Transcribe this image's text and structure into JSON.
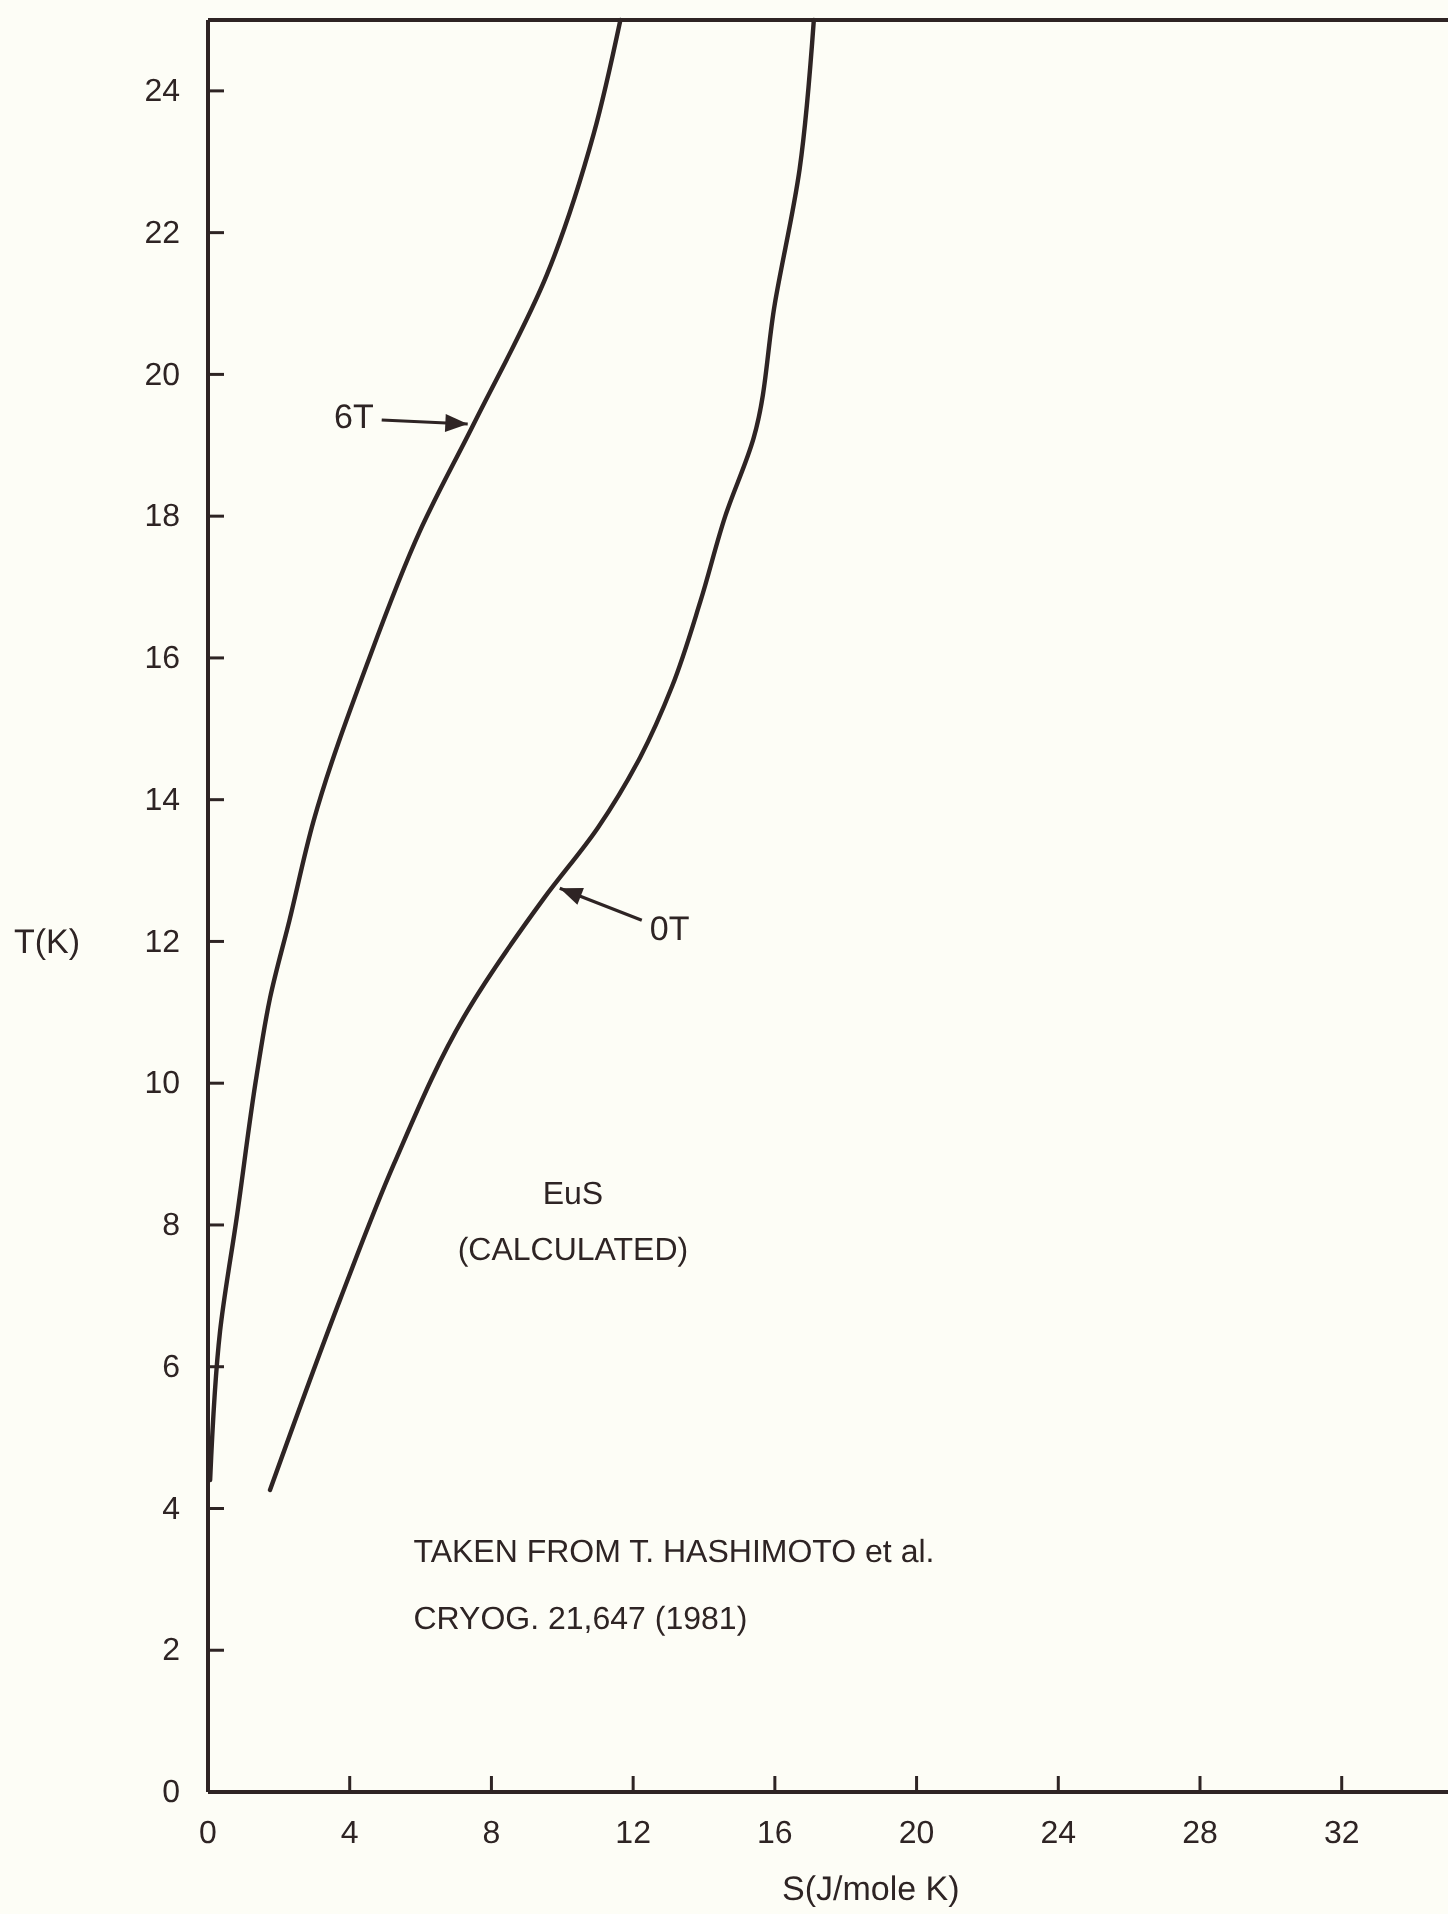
{
  "chart_data": {
    "type": "line",
    "xlabel": "S(J/mole K)",
    "ylabel": "T(K)",
    "xlim": [
      0,
      35
    ],
    "ylim": [
      0,
      25
    ],
    "xticks": [
      0,
      4,
      8,
      12,
      16,
      20,
      24,
      28,
      32
    ],
    "yticks": [
      0,
      2,
      4,
      6,
      8,
      10,
      12,
      14,
      16,
      18,
      20,
      22,
      24
    ],
    "series": [
      {
        "color": "#2e2424",
        "x": [
          0.06,
          0.34,
          0.81,
          1.37,
          1.75,
          2.3,
          2.98,
          4.48,
          5.99,
          7.5,
          9.56,
          10.89,
          11.64
        ],
        "values": [
          4.4,
          6.5,
          8.1,
          10.1,
          11.2,
          12.3,
          13.7,
          15.9,
          17.8,
          19.3,
          21.4,
          23.4,
          25.0
        ]
      },
      {
        "color": "#2e2424",
        "x": [
          1.75,
          3.73,
          5.24,
          7.3,
          9.47,
          11.0,
          12.2,
          13.1,
          13.9,
          14.6,
          15.4,
          16.0,
          16.7,
          17.1
        ],
        "values": [
          4.26,
          6.95,
          8.85,
          11.0,
          12.6,
          13.6,
          14.6,
          15.6,
          16.8,
          18.0,
          19.1,
          21.0,
          22.9,
          25.0
        ]
      }
    ],
    "annotations": [
      {
        "text": "6T",
        "x": 7.5,
        "y": 19.3
      },
      {
        "text": "0T",
        "x": 9.76,
        "y": 12.75
      },
      "EuS",
      "(CALCULATED)",
      "TAKEN FROM T. HASHIMOTO et al.",
      "CRYOG. 21,647 (1981)"
    ]
  }
}
